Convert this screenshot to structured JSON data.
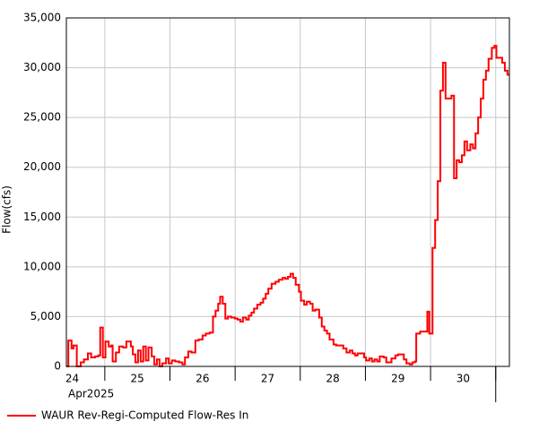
{
  "chart_data": {
    "type": "line",
    "step": "post",
    "y_label": "Flow(cfs)",
    "x_sublabel": "Apr2025",
    "xlim": [
      24.41,
      31.21
    ],
    "xticks": [
      {
        "value": 24.5,
        "label": "24"
      },
      {
        "value": 25.5,
        "label": "25"
      },
      {
        "value": 26.5,
        "label": "26"
      },
      {
        "value": 27.5,
        "label": "27"
      },
      {
        "value": 28.5,
        "label": "28"
      },
      {
        "value": 29.5,
        "label": "29"
      },
      {
        "value": 30.5,
        "label": "30"
      }
    ],
    "xgrid": [
      25,
      26,
      27,
      28,
      29,
      30,
      31
    ],
    "month_boundaries": [
      31
    ],
    "ylim": [
      0,
      35000
    ],
    "yticks": [
      0,
      {
        "value": 5000,
        "label": "5,000"
      },
      {
        "value": 10000,
        "label": "10,000"
      },
      {
        "value": 15000,
        "label": "15,000"
      },
      {
        "value": 20000,
        "label": "20,000"
      },
      {
        "value": 25000,
        "label": "25,000"
      },
      {
        "value": 30000,
        "label": "30,000"
      },
      {
        "value": 35000,
        "label": "35,000"
      }
    ],
    "grid": true,
    "legend": "bottom-left",
    "series": [
      {
        "name": "WAUR Rev-Regi-Computed Flow-Res In",
        "color": "#ff0000",
        "x": [
          24.41,
          24.44,
          24.49,
          24.52,
          24.57,
          24.63,
          24.68,
          24.74,
          24.79,
          24.85,
          24.9,
          24.93,
          24.97,
          25.01,
          25.06,
          25.1,
          25.12,
          25.17,
          25.22,
          25.28,
          25.33,
          25.4,
          25.43,
          25.47,
          25.51,
          25.55,
          25.59,
          25.63,
          25.67,
          25.72,
          25.76,
          25.8,
          25.84,
          25.88,
          25.94,
          25.98,
          26.03,
          26.08,
          26.14,
          26.19,
          26.23,
          26.28,
          26.33,
          26.39,
          26.44,
          26.5,
          26.55,
          26.61,
          26.66,
          26.7,
          26.74,
          26.77,
          26.81,
          26.85,
          26.89,
          26.94,
          27.0,
          27.04,
          27.08,
          27.12,
          27.17,
          27.21,
          27.25,
          27.29,
          27.34,
          27.39,
          27.43,
          27.47,
          27.51,
          27.56,
          27.62,
          27.67,
          27.73,
          27.77,
          27.81,
          27.85,
          27.89,
          27.93,
          27.98,
          28.01,
          28.06,
          28.1,
          28.15,
          28.19,
          28.23,
          28.29,
          28.33,
          28.37,
          28.41,
          28.45,
          28.51,
          28.55,
          28.6,
          28.66,
          28.71,
          28.76,
          28.8,
          28.84,
          28.88,
          28.93,
          28.98,
          29.01,
          29.06,
          29.1,
          29.14,
          29.18,
          29.22,
          29.28,
          29.32,
          29.36,
          29.4,
          29.46,
          29.5,
          29.55,
          29.59,
          29.63,
          29.68,
          29.72,
          29.76,
          29.78,
          29.84,
          29.89,
          29.95,
          29.98,
          30.03,
          30.07,
          30.11,
          30.15,
          30.19,
          30.23,
          30.28,
          30.32,
          30.36,
          30.4,
          30.44,
          30.48,
          30.52,
          30.56,
          30.61,
          30.65,
          30.69,
          30.73,
          30.77,
          30.81,
          30.85,
          30.89,
          30.94,
          30.98,
          31.01,
          31.06,
          31.1,
          31.14,
          31.18
        ],
        "values": [
          0,
          2600,
          1800,
          2100,
          0,
          400,
          700,
          1300,
          900,
          1000,
          1100,
          3900,
          900,
          2500,
          2000,
          2100,
          500,
          1400,
          2000,
          1900,
          2500,
          2000,
          1200,
          400,
          1600,
          500,
          2000,
          600,
          1900,
          1000,
          200,
          700,
          0,
          300,
          800,
          300,
          600,
          500,
          400,
          200,
          900,
          1500,
          1400,
          2600,
          2700,
          3100,
          3300,
          3400,
          5000,
          5600,
          6300,
          7000,
          6300,
          4800,
          5000,
          4900,
          4800,
          4700,
          4500,
          4900,
          4700,
          5100,
          5400,
          5800,
          6200,
          6400,
          6800,
          7300,
          7800,
          8300,
          8500,
          8700,
          8900,
          8800,
          9000,
          9300,
          8900,
          8200,
          7500,
          6600,
          6200,
          6500,
          6300,
          5600,
          5700,
          4900,
          4000,
          3600,
          3300,
          2700,
          2200,
          2100,
          2100,
          1800,
          1400,
          1600,
          1300,
          1100,
          1300,
          1300,
          900,
          600,
          800,
          500,
          700,
          500,
          1000,
          900,
          400,
          400,
          800,
          1100,
          1200,
          1200,
          700,
          300,
          200,
          400,
          500,
          3300,
          3500,
          3500,
          5500,
          3300,
          11900,
          14700,
          18600,
          27700,
          30500,
          26900,
          26900,
          27200,
          18900,
          20700,
          20500,
          21200,
          22600,
          21700,
          22300,
          21900,
          23400,
          25000,
          26900,
          28800,
          29700,
          30900,
          32000,
          32200,
          31000,
          31000,
          30500,
          29700,
          29300
        ]
      }
    ]
  }
}
